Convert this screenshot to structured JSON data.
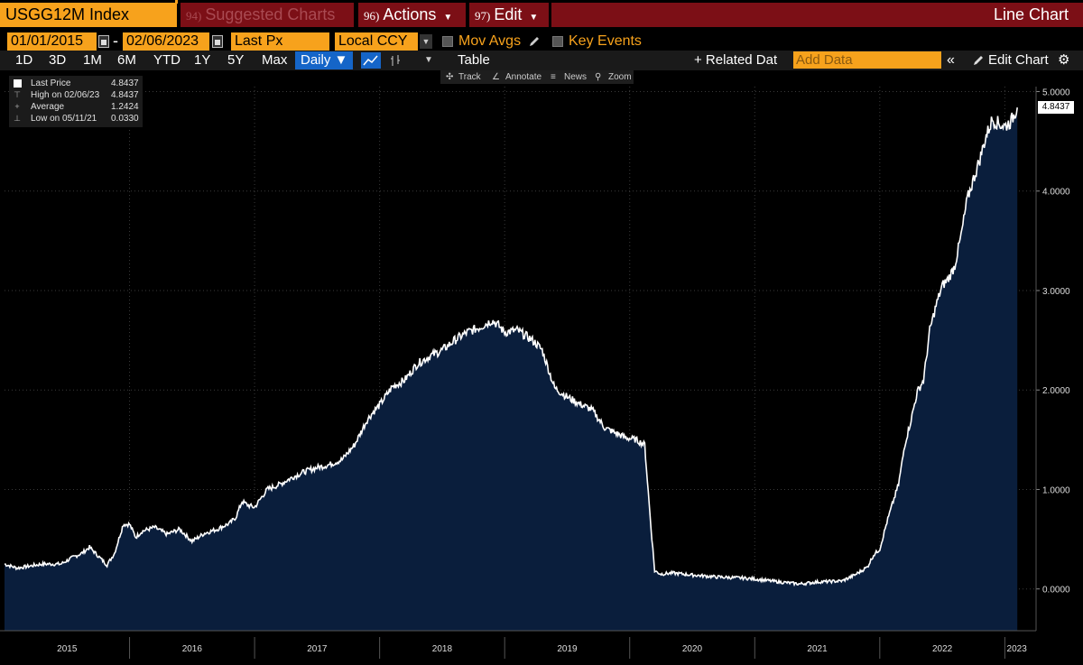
{
  "titlebar": {
    "ticker": "USGG12M Index",
    "suggested_num": "94)",
    "suggested_label": "Suggested Charts",
    "actions_num": "96)",
    "actions_label": "Actions",
    "edit_num": "97)",
    "edit_label": "Edit",
    "chart_type": "Line Chart"
  },
  "controls": {
    "start_date": "01/01/2015",
    "end_date": "02/06/2023",
    "field": "Last Px",
    "currency": "Local CCY",
    "mov_avgs": "Mov Avgs",
    "key_events": "Key Events"
  },
  "periods": [
    "1D",
    "3D",
    "1M",
    "6M",
    "YTD",
    "1Y",
    "5Y",
    "Max"
  ],
  "toolbar": {
    "frequency": "Daily ▼",
    "table": "Table",
    "related_data": "+ Related Dat",
    "add_data_placeholder": "Add Data",
    "edit_chart": "Edit Chart"
  },
  "tools": {
    "track": "Track",
    "annotate": "Annotate",
    "news": "News",
    "zoom": "Zoom"
  },
  "legend": {
    "last_price_label": "Last Price",
    "last_price_value": "4.8437",
    "high_label": "High on 02/06/23",
    "high_value": "4.8437",
    "average_label": "Average",
    "average_value": "1.2424",
    "low_label": "Low on 05/11/21",
    "low_value": "0.0330"
  },
  "colors": {
    "accent_orange": "#f7a21c",
    "title_red": "#7c0f16",
    "area_fill": "#0a1e3c",
    "line": "#ffffff",
    "active_blue": "#1565c8"
  },
  "chart_data": {
    "type": "area",
    "x": [
      2015.0,
      2015.1,
      2015.2,
      2015.3,
      2015.45,
      2015.55,
      2015.62,
      2015.68,
      2015.75,
      2015.82,
      2015.88,
      2015.95,
      2016.0,
      2016.05,
      2016.1,
      2016.2,
      2016.3,
      2016.4,
      2016.5,
      2016.6,
      2016.7,
      2016.8,
      2016.85,
      2016.9,
      2016.95,
      2017.0,
      2017.1,
      2017.2,
      2017.3,
      2017.4,
      2017.5,
      2017.6,
      2017.7,
      2017.8,
      2017.9,
      2017.95,
      2018.0,
      2018.1,
      2018.2,
      2018.3,
      2018.4,
      2018.5,
      2018.6,
      2018.7,
      2018.8,
      2018.9,
      2018.95,
      2019.0,
      2019.1,
      2019.2,
      2019.25,
      2019.3,
      2019.4,
      2019.5,
      2019.6,
      2019.7,
      2019.8,
      2019.9,
      2019.97,
      2020.05,
      2020.12,
      2020.17,
      2020.2,
      2020.25,
      2020.35,
      2020.5,
      2020.7,
      2020.9,
      2021.0,
      2021.2,
      2021.36,
      2021.5,
      2021.7,
      2021.8,
      2021.9,
      2021.95,
      2022.0,
      2022.05,
      2022.1,
      2022.15,
      2022.2,
      2022.25,
      2022.3,
      2022.35,
      2022.4,
      2022.45,
      2022.5,
      2022.55,
      2022.6,
      2022.65,
      2022.7,
      2022.75,
      2022.8,
      2022.85,
      2022.9,
      2022.95,
      2023.0,
      2023.05,
      2023.1
    ],
    "values": [
      0.25,
      0.21,
      0.23,
      0.25,
      0.25,
      0.32,
      0.36,
      0.42,
      0.33,
      0.24,
      0.36,
      0.65,
      0.65,
      0.52,
      0.58,
      0.62,
      0.55,
      0.6,
      0.48,
      0.56,
      0.6,
      0.66,
      0.72,
      0.88,
      0.84,
      0.82,
      1.0,
      1.05,
      1.12,
      1.18,
      1.22,
      1.25,
      1.3,
      1.45,
      1.7,
      1.78,
      1.85,
      2.03,
      2.1,
      2.26,
      2.34,
      2.4,
      2.5,
      2.58,
      2.63,
      2.7,
      2.65,
      2.58,
      2.6,
      2.52,
      2.47,
      2.4,
      2.02,
      1.93,
      1.86,
      1.8,
      1.62,
      1.56,
      1.52,
      1.5,
      1.45,
      0.62,
      0.18,
      0.15,
      0.16,
      0.14,
      0.12,
      0.11,
      0.1,
      0.07,
      0.05,
      0.07,
      0.08,
      0.14,
      0.22,
      0.34,
      0.4,
      0.64,
      0.85,
      1.05,
      1.45,
      1.7,
      1.98,
      2.1,
      2.6,
      2.85,
      3.05,
      3.12,
      3.25,
      3.55,
      3.92,
      4.12,
      4.32,
      4.55,
      4.72,
      4.68,
      4.65,
      4.7,
      4.84
    ],
    "xticks": [
      "2015",
      "2016",
      "2017",
      "2018",
      "2019",
      "2020",
      "2021",
      "2022",
      "2023"
    ],
    "yticks": [
      "5.0000",
      "4.0000",
      "3.0000",
      "2.0000",
      "1.0000",
      "0.0000"
    ],
    "ylim": [
      -0.42,
      5.05
    ],
    "xlim": [
      2015.0,
      2023.12
    ],
    "last_value_label": "4.8437"
  }
}
